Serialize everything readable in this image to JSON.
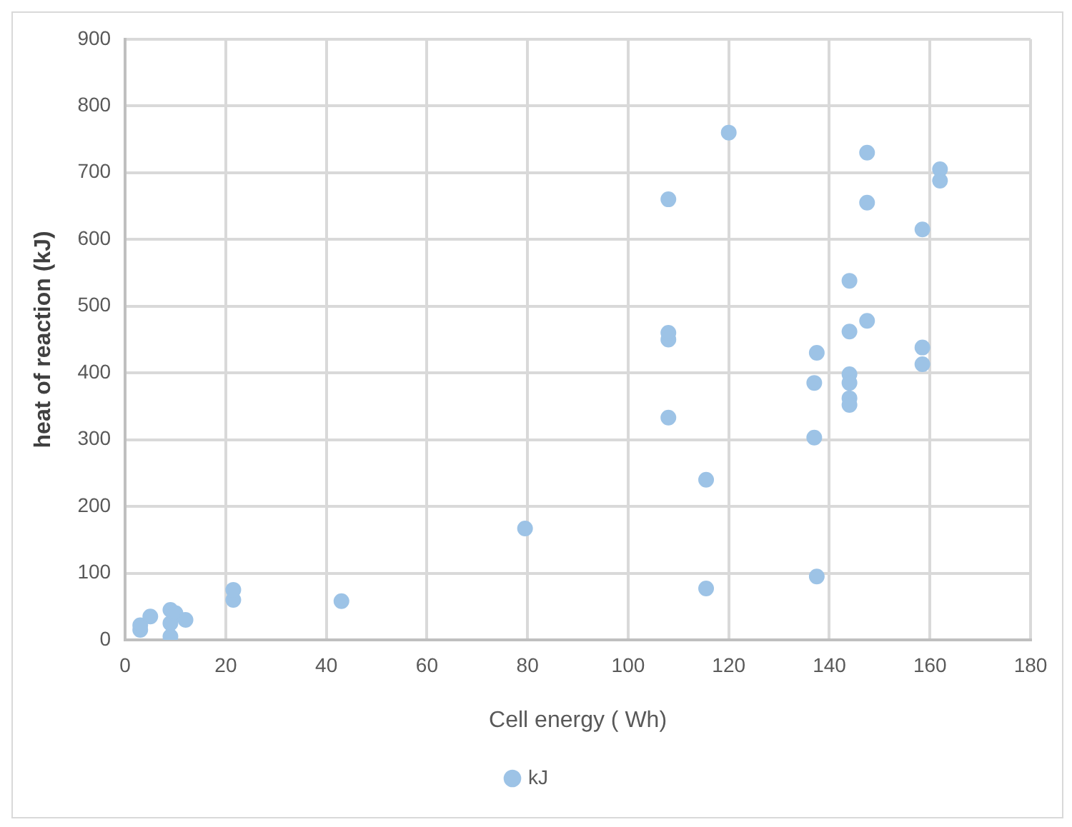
{
  "chart_data": {
    "type": "scatter",
    "xlabel": "Cell energy ( Wh)",
    "ylabel": "heat of reaction (kJ)",
    "series": [
      {
        "name": "kJ",
        "color": "#9dc3e6",
        "x": [
          3,
          3,
          5,
          9,
          9,
          9,
          10,
          12,
          21.5,
          21.5,
          43,
          79.5,
          108,
          108,
          108,
          108,
          115.5,
          115.5,
          120,
          137,
          137,
          137.5,
          137.5,
          144,
          144,
          144,
          144,
          144,
          144,
          147.5,
          147.5,
          147.5,
          158.5,
          158.5,
          158.5,
          162,
          162
        ],
        "values": [
          15,
          22,
          35,
          5,
          25,
          45,
          40,
          30,
          60,
          75,
          58,
          167,
          660,
          450,
          460,
          333,
          240,
          77,
          760,
          385,
          303,
          430,
          95,
          538,
          462,
          398,
          385,
          362,
          352,
          730,
          655,
          478,
          615,
          438,
          413,
          705,
          688
        ]
      }
    ],
    "xlim": [
      0,
      180
    ],
    "xticks": [
      0,
      20,
      40,
      60,
      80,
      100,
      120,
      140,
      160,
      180
    ],
    "ylim": [
      0,
      900
    ],
    "yticks": [
      0,
      100,
      200,
      300,
      400,
      500,
      600,
      700,
      800,
      900
    ],
    "grid": true,
    "legend": "bottom",
    "marker": "circle"
  }
}
